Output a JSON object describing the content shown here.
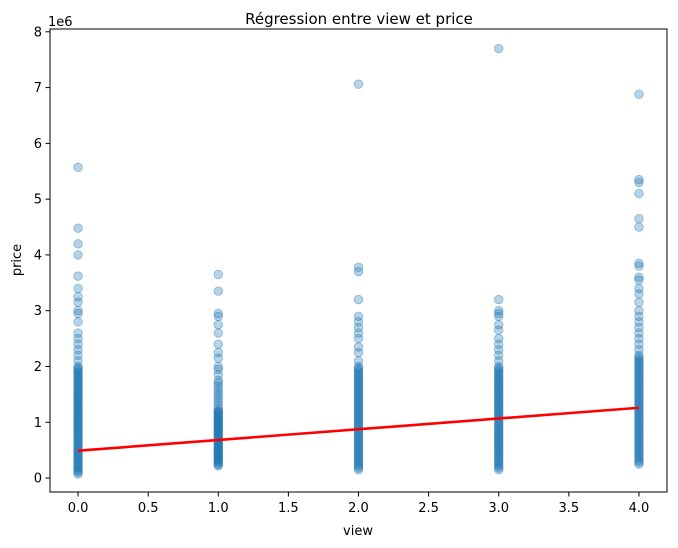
{
  "chart_data": {
    "type": "scatter",
    "title": "Régression entre view et price",
    "xlabel": "view",
    "ylabel": "price",
    "y_offset_label": "1e6",
    "xlim": [
      -0.2,
      4.2
    ],
    "ylim": [
      -250000,
      8050000
    ],
    "x_ticks": [
      0.0,
      0.5,
      1.0,
      1.5,
      2.0,
      2.5,
      3.0,
      3.5,
      4.0
    ],
    "x_tick_labels": [
      "0.0",
      "0.5",
      "1.0",
      "1.5",
      "2.0",
      "2.5",
      "3.0",
      "3.5",
      "4.0"
    ],
    "y_ticks": [
      0,
      1000000,
      2000000,
      3000000,
      4000000,
      5000000,
      6000000,
      7000000,
      8000000
    ],
    "y_tick_labels": [
      "0",
      "1",
      "2",
      "3",
      "4",
      "5",
      "6",
      "7",
      "8"
    ],
    "grid": false,
    "point_color": "#1f77b4",
    "line_color": "#ff0000",
    "groups": [
      {
        "x": 0,
        "dense": [
          [
            75000,
            2000000,
            70
          ]
        ],
        "points": [
          2100000,
          2200000,
          2300000,
          2400000,
          2500000,
          2600000,
          2800000,
          2950000,
          3000000,
          3150000,
          3250000,
          3400000,
          3620000,
          4000000,
          4200000,
          4480000,
          5570000
        ]
      },
      {
        "x": 1,
        "dense": [
          [
            220000,
            1200000,
            45
          ],
          [
            1200000,
            1700000,
            10
          ]
        ],
        "points": [
          1750000,
          1850000,
          1950000,
          2000000,
          2150000,
          2250000,
          2400000,
          2600000,
          2750000,
          2900000,
          2950000,
          3350000,
          3650000
        ]
      },
      {
        "x": 2,
        "dense": [
          [
            150000,
            2000000,
            60
          ]
        ],
        "points": [
          2100000,
          2250000,
          2350000,
          2500000,
          2600000,
          2700000,
          2800000,
          2900000,
          3200000,
          3700000,
          3780000,
          7060000
        ]
      },
      {
        "x": 3,
        "dense": [
          [
            150000,
            2000000,
            60
          ]
        ],
        "points": [
          2100000,
          2200000,
          2300000,
          2400000,
          2500000,
          2650000,
          2750000,
          2900000,
          2950000,
          3000000,
          3200000,
          7700000
        ]
      },
      {
        "x": 4,
        "dense": [
          [
            250000,
            2200000,
            60
          ]
        ],
        "points": [
          2300000,
          2400000,
          2500000,
          2600000,
          2700000,
          2800000,
          2900000,
          3000000,
          3150000,
          3300000,
          3400000,
          3550000,
          3600000,
          3800000,
          3850000,
          4500000,
          4650000,
          5100000,
          5300000,
          5350000,
          6880000
        ]
      }
    ],
    "regression": {
      "x": [
        0,
        4
      ],
      "y": [
        490000,
        1260000
      ]
    }
  }
}
